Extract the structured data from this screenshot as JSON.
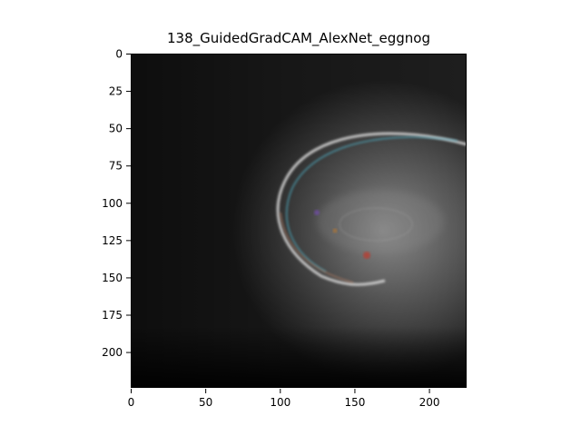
{
  "figure": {
    "title": "138_GuidedGradCAM_AlexNet_eggnog",
    "image_subject": "guided-gradcam-heatmap"
  },
  "chart_data": {
    "type": "heatmap",
    "title": "138_GuidedGradCAM_AlexNet_eggnog",
    "xlim": [
      0,
      224
    ],
    "ylim": [
      224,
      0
    ],
    "x_ticks": [
      "0",
      "50",
      "100",
      "150",
      "200"
    ],
    "x_tick_values": [
      0,
      50,
      100,
      150,
      200
    ],
    "y_ticks": [
      "0",
      "25",
      "50",
      "75",
      "100",
      "125",
      "150",
      "175",
      "200"
    ],
    "y_tick_values": [
      0,
      25,
      50,
      75,
      100,
      125,
      150,
      175,
      200
    ],
    "grid": false
  }
}
